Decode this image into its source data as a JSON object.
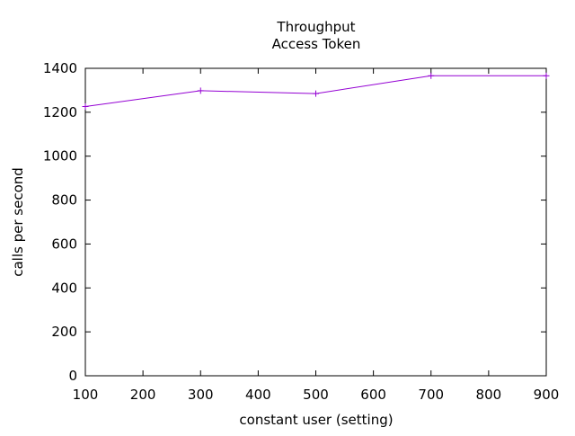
{
  "chart_data": {
    "type": "line",
    "title": "Throughput",
    "subtitle": "Access Token",
    "xlabel": "constant user (setting)",
    "ylabel": "calls per second",
    "xlim": [
      100,
      900
    ],
    "ylim": [
      0,
      1400
    ],
    "xticks": [
      100,
      200,
      300,
      400,
      500,
      600,
      700,
      800,
      900
    ],
    "yticks": [
      0,
      200,
      400,
      600,
      800,
      1000,
      1200,
      1400
    ],
    "grid": false,
    "series": [
      {
        "color": "#9400d3",
        "x": [
          100,
          300,
          500,
          700,
          900
        ],
        "y": [
          1226,
          1298,
          1285,
          1366,
          1366
        ]
      }
    ]
  }
}
